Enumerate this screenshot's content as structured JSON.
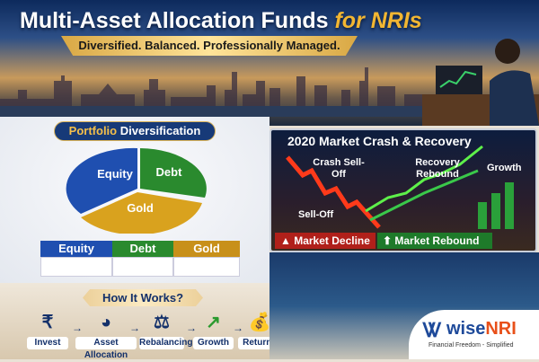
{
  "header": {
    "title_main": "Multi-Asset Allocation Funds",
    "title_accent": "for NRIs",
    "subtitle": "Diversified. Balanced. Professionally Managed."
  },
  "portfolio": {
    "title_accent": "Portfolio",
    "title_rest": "Diversification",
    "pie": [
      {
        "label": "Equity",
        "color": "#1f4fb0"
      },
      {
        "label": "Debt",
        "color": "#2a8a2e"
      },
      {
        "label": "Gold",
        "color": "#d9a21e"
      }
    ],
    "tabs": [
      {
        "label": "Equity",
        "color": "#1f4fb0"
      },
      {
        "label": "Debt",
        "color": "#2a8a2e"
      },
      {
        "label": "Gold",
        "color": "#c8901a"
      }
    ]
  },
  "market": {
    "title": "2020 Market Crash & Recovery",
    "crash": "Crash Sell-Off",
    "selloff": "Sell-Off",
    "recovery": "Recovery Rebound",
    "growth": "Growth",
    "decline_label": "Market Decline",
    "rebound_label": "Market Rebound",
    "decline_color": "#b0201a",
    "rebound_color": "#1e7a2a"
  },
  "how": {
    "title": "How It Works?",
    "steps": [
      {
        "label": "Invest",
        "icon": "rupee-hand-icon"
      },
      {
        "label": "Asset Allocation",
        "icon": "pie-chart-icon"
      },
      {
        "label": "Rebalancing",
        "icon": "scale-icon"
      },
      {
        "label": "Growth",
        "icon": "growth-chart-icon"
      },
      {
        "label": "Returns",
        "icon": "money-bag-icon"
      }
    ]
  },
  "brand": {
    "name_a": "wise",
    "name_b": "NRI",
    "tagline": "Financial Freedom - Simplified"
  }
}
